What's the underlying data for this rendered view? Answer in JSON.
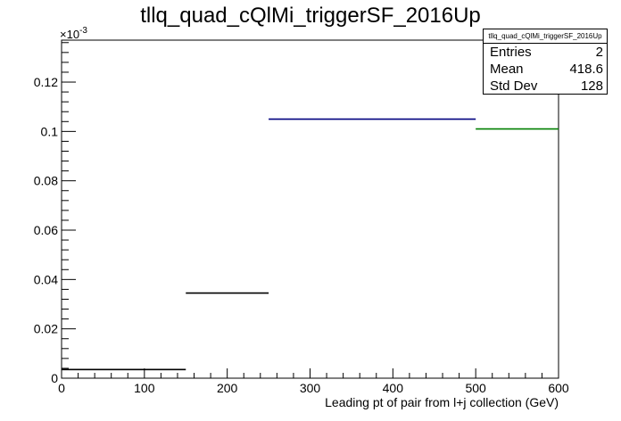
{
  "chart_data": {
    "type": "histogram",
    "title": "tllq_quad_cQlMi_triggerSF_2016Up",
    "xlabel": "Leading pt of pair from l+j collection (GeV)",
    "ylabel": "",
    "xlim": [
      0,
      600
    ],
    "ylim": [
      0,
      0.000137
    ],
    "y_exponent_label": "×10",
    "y_exponent_power": "-3",
    "x_ticks": [
      0,
      100,
      200,
      300,
      400,
      500,
      600
    ],
    "x_tick_labels": [
      "0",
      "100",
      "200",
      "300",
      "400",
      "500",
      "600"
    ],
    "y_ticks": [
      0,
      2e-05,
      4e-05,
      6e-05,
      8e-05,
      0.0001,
      0.00012
    ],
    "y_tick_labels": [
      "0",
      "0.02",
      "0.04",
      "0.06",
      "0.08",
      "0.1",
      "0.12"
    ],
    "bins": [
      {
        "x0": 0,
        "x1": 150,
        "value": 3.5e-06,
        "color": "#000000"
      },
      {
        "x0": 150,
        "x1": 250,
        "value": 3.45e-05,
        "color": "#000000"
      },
      {
        "x0": 250,
        "x1": 500,
        "value": 0.000105,
        "color": "#00007f"
      },
      {
        "x0": 500,
        "x1": 600,
        "value": 0.000101,
        "color": "#007f00"
      }
    ],
    "grid": false,
    "legend": "top-right"
  },
  "stats_box": {
    "title": "tllq_quad_cQlMi_triggerSF_2016Up",
    "entries_label": "Entries",
    "entries_value": "2",
    "mean_label": "Mean",
    "mean_value": "418.6",
    "stddev_label": "Std Dev",
    "stddev_value": "128"
  }
}
